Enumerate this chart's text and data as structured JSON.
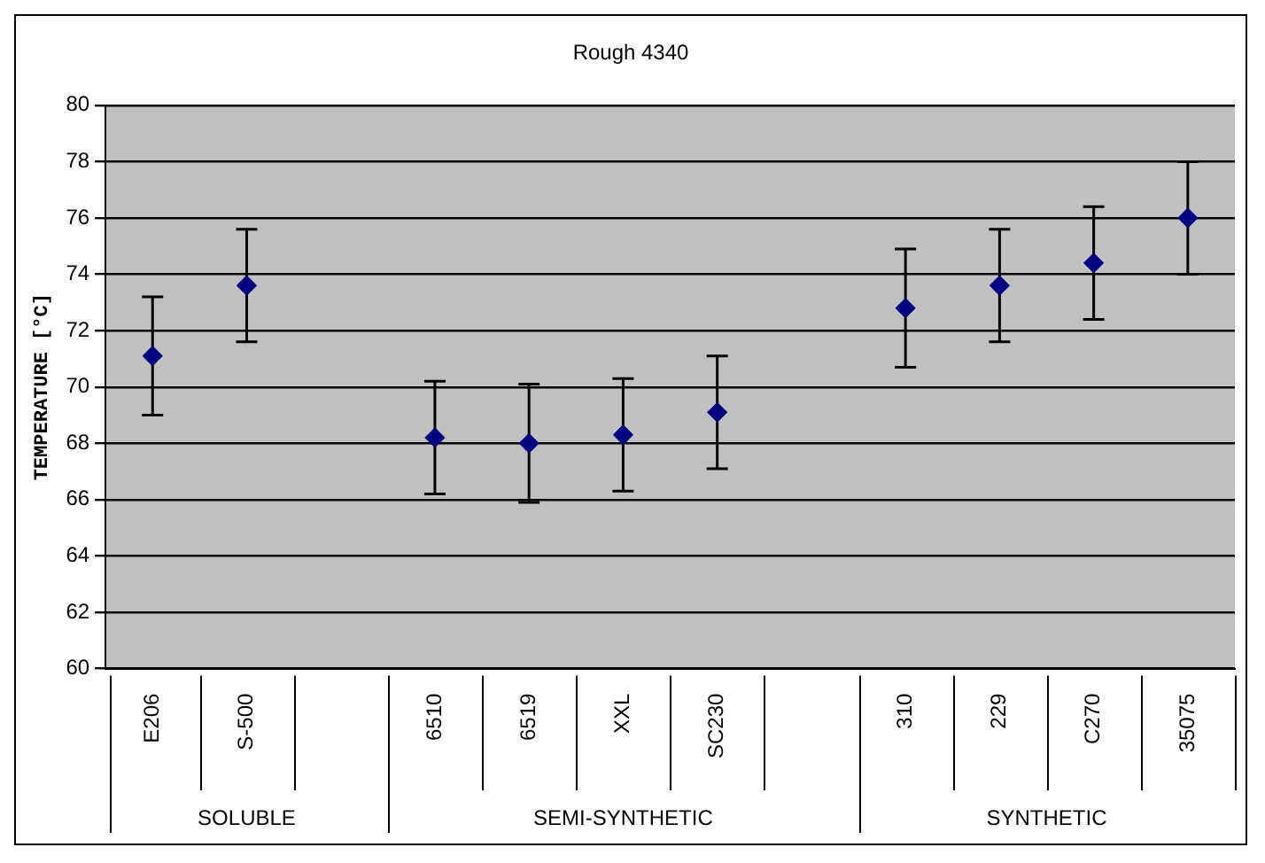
{
  "chart_data": {
    "type": "scatter",
    "title": "Rough 4340",
    "ylabel": "TEMPERATURE [°C]",
    "categories": [
      "E206",
      "S-500",
      null,
      "6510",
      "6519",
      "XXL",
      "SC230",
      null,
      "310",
      "229",
      "C270",
      "35075"
    ],
    "values": [
      71.1,
      73.6,
      null,
      68.2,
      68.0,
      68.3,
      69.1,
      null,
      72.8,
      73.6,
      74.4,
      76.0
    ],
    "errors": [
      2.1,
      2.0,
      null,
      2.0,
      2.1,
      2.0,
      2.0,
      null,
      2.1,
      2.0,
      2.0,
      2.0
    ],
    "color": "#000080",
    "marker": "diamond",
    "grid": "y",
    "ylim": [
      60,
      80
    ],
    "yticks": [
      60,
      62,
      64,
      66,
      68,
      70,
      72,
      74,
      76,
      78,
      80
    ],
    "annotations": [
      "SOLUBLE",
      "SEMI-SYNTHETIC",
      "SYNTHETIC"
    ]
  }
}
